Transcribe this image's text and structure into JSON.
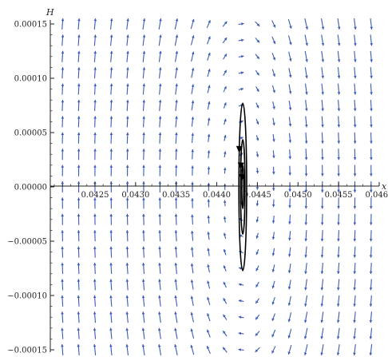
{
  "chart_data": {
    "type": "vector-field-phase-portrait",
    "xlabel": "x",
    "ylabel": "H",
    "xlim": [
      0.04195,
      0.046
    ],
    "ylim": [
      -0.000155,
      0.000155
    ],
    "origin": [
      0.04195,
      0.0
    ],
    "x_ticks": [
      {
        "value": 0.0425,
        "label": "0.0425"
      },
      {
        "value": 0.043,
        "label": "0.0430"
      },
      {
        "value": 0.0435,
        "label": "0.0435"
      },
      {
        "value": 0.044,
        "label": "0.0440"
      },
      {
        "value": 0.0445,
        "label": "0.0445"
      },
      {
        "value": 0.045,
        "label": "0.0450"
      },
      {
        "value": 0.0455,
        "label": "0.0455"
      },
      {
        "value": 0.046,
        "label": "0.0460"
      }
    ],
    "y_ticks": [
      {
        "value": 0.00015,
        "label": "0.00015"
      },
      {
        "value": 0.0001,
        "label": "0.00010"
      },
      {
        "value": 5e-05,
        "label": "0.00005"
      },
      {
        "value": 0.0,
        "label": "0.00000"
      },
      {
        "value": -5e-05,
        "label": "−0.00005"
      },
      {
        "value": -0.0001,
        "label": "−0.00010"
      },
      {
        "value": -0.00015,
        "label": "−0.00015"
      }
    ],
    "equilibrium": {
      "x": 0.04432,
      "y": 0.0
    },
    "field": {
      "grid_x": [
        0.0421,
        0.0423,
        0.0425,
        0.0427,
        0.0429,
        0.0431,
        0.0433,
        0.0435,
        0.0437,
        0.0439,
        0.0441,
        0.0443,
        0.0445,
        0.0447,
        0.0449,
        0.0451,
        0.0453,
        0.0455,
        0.0457,
        0.0459
      ],
      "grid_y": [
        0.00015,
        0.000135,
        0.00012,
        0.000105,
        9e-05,
        7.5e-05,
        6e-05,
        4.5e-05,
        3e-05,
        1.5e-05,
        0.0,
        -1.5e-05,
        -3e-05,
        -4.5e-05,
        -6e-05,
        -7.5e-05,
        -9e-05,
        -0.000105,
        -0.00012,
        -0.000135,
        -0.00015
      ],
      "color": "#3a5bb5"
    },
    "trajectories": [
      {
        "a": 5e-05,
        "b": 2.3e-05,
        "color": "#000000"
      },
      {
        "a": 1.2e-05,
        "b": 2e-05,
        "color": "#000000"
      },
      {
        "a": 2.7e-05,
        "b": 4.35e-05,
        "color": "#000000"
      },
      {
        "a": 4.8e-05,
        "b": 7.7e-05,
        "color": "#000000"
      }
    ]
  }
}
